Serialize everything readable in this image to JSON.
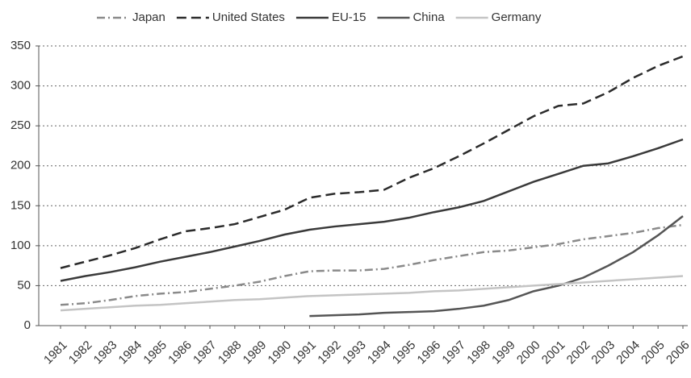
{
  "chart_data": {
    "type": "line",
    "categories": [
      "1981",
      "1982",
      "1983",
      "1984",
      "1985",
      "1986",
      "1987",
      "1988",
      "1989",
      "1990",
      "1991",
      "1992",
      "1993",
      "1994",
      "1995",
      "1996",
      "1997",
      "1998",
      "1999",
      "2000",
      "2001",
      "2002",
      "2003",
      "2004",
      "2005",
      "2006"
    ],
    "series": [
      {
        "name": "Japan",
        "color": "#8a8a8a",
        "linestyle": "dashdot",
        "values": [
          26,
          28,
          32,
          37,
          40,
          42,
          46,
          50,
          55,
          62,
          68,
          69,
          69,
          71,
          76,
          82,
          87,
          92,
          94,
          98,
          102,
          108,
          112,
          116,
          122,
          126
        ]
      },
      {
        "name": "United States",
        "color": "#2b2b2b",
        "linestyle": "dashed",
        "values": [
          72,
          80,
          88,
          97,
          108,
          118,
          122,
          127,
          136,
          145,
          160,
          165,
          167,
          170,
          185,
          197,
          212,
          228,
          245,
          262,
          275,
          278,
          292,
          310,
          325,
          337
        ]
      },
      {
        "name": "EU-15",
        "color": "#3a3a3a",
        "linestyle": "solid",
        "values": [
          56,
          62,
          67,
          73,
          80,
          86,
          92,
          99,
          106,
          114,
          120,
          124,
          127,
          130,
          135,
          142,
          148,
          156,
          168,
          180,
          190,
          200,
          203,
          212,
          222,
          233
        ]
      },
      {
        "name": "China",
        "color": "#555555",
        "linestyle": "solid",
        "values": [
          null,
          null,
          null,
          null,
          null,
          null,
          null,
          null,
          null,
          null,
          12,
          13,
          14,
          16,
          17,
          18,
          21,
          25,
          32,
          43,
          50,
          60,
          75,
          92,
          113,
          137
        ]
      },
      {
        "name": "Germany",
        "color": "#c4c4c4",
        "linestyle": "solid",
        "values": [
          19,
          21,
          23,
          25,
          26,
          28,
          30,
          32,
          33,
          35,
          37,
          38,
          39,
          40,
          41,
          43,
          44,
          46,
          48,
          50,
          52,
          54,
          56,
          58,
          60,
          62
        ]
      }
    ],
    "ylim": [
      0,
      350
    ],
    "yticks": [
      0,
      50,
      100,
      150,
      200,
      250,
      300,
      350
    ],
    "grid": true,
    "legend": "top"
  }
}
